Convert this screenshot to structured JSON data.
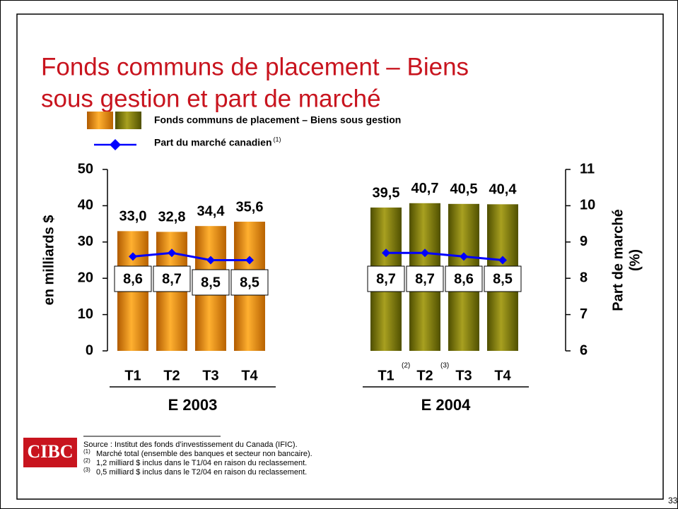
{
  "slide": {
    "page_number": "33",
    "logo": "CIBC",
    "source": "Source :  Institut des fonds d’investissement du Canada (IFIC).",
    "footnotes": [
      {
        "mark": "(1)",
        "text": "Marché total (ensemble des banques et secteur non bancaire)."
      },
      {
        "mark": "(2)",
        "text": "1,2 milliard $ inclus dans le T1/04 en raison du reclassement."
      },
      {
        "mark": "(3)",
        "text": "0,5 milliard $ inclus dans le T2/04 en raison du reclassement."
      }
    ]
  },
  "chart_data": {
    "type": "bar",
    "title": [
      "Fonds communs de placement – Biens",
      "sous gestion et part de marché"
    ],
    "categories": [
      "T1",
      "T2",
      "T3",
      "T4",
      null,
      "T1",
      "T2",
      "T3",
      "T4"
    ],
    "category_notes": [
      null,
      null,
      null,
      null,
      null,
      "(2)",
      "(3)",
      null,
      null
    ],
    "groups": [
      "E 2003",
      "E 2004"
    ],
    "ylabel": "en milliards $",
    "y2label": [
      "Part de marché",
      "(%)"
    ],
    "ylim": [
      0,
      50
    ],
    "yticks": [
      0,
      10,
      20,
      30,
      40,
      50
    ],
    "y2lim": [
      6,
      11
    ],
    "y2ticks": [
      6,
      7,
      8,
      9,
      10,
      11
    ],
    "series": [
      {
        "name": "Fonds communs de placement – Biens sous gestion",
        "type": "bar",
        "colors": [
          "#e88a00",
          "#7a7a00"
        ],
        "values": [
          33.0,
          32.8,
          34.4,
          35.6,
          null,
          39.5,
          40.7,
          40.5,
          40.4
        ],
        "value_labels": [
          "33,0",
          "32,8",
          "34,4",
          "35,6",
          null,
          "39,5",
          "40,7",
          "40,5",
          "40,4"
        ]
      },
      {
        "name": "Part du marché canadien",
        "legend_note": "(1)",
        "type": "line",
        "axis": "y2",
        "color": "#0000ff",
        "values": [
          8.6,
          8.7,
          8.5,
          8.5,
          null,
          8.7,
          8.7,
          8.6,
          8.5
        ],
        "value_labels": [
          "8,6",
          "8,7",
          "8,5",
          "8,5",
          null,
          "8,7",
          "8,7",
          "8,6",
          "8,5"
        ]
      }
    ]
  }
}
